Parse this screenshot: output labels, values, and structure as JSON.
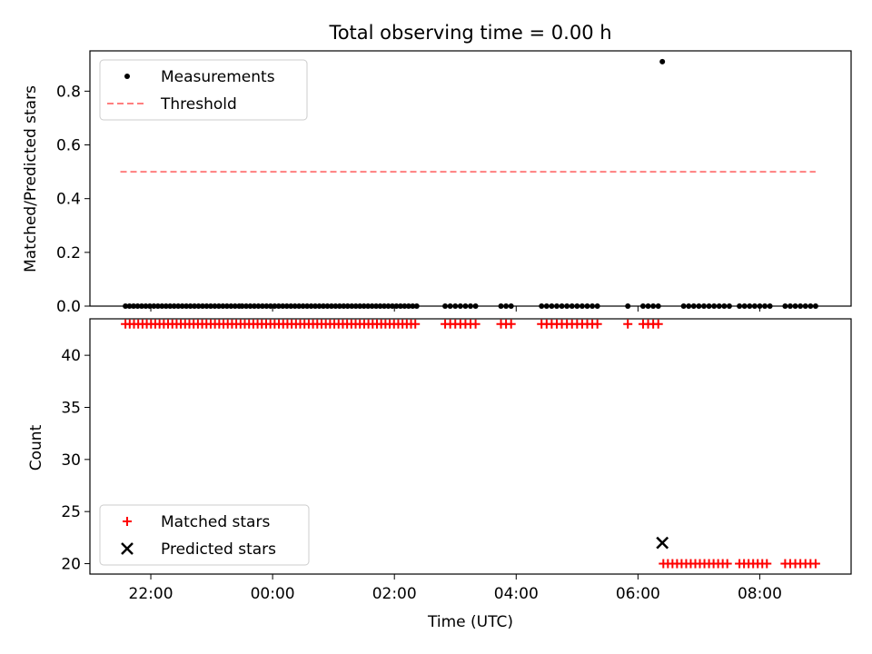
{
  "chart_data": [
    {
      "type": "scatter",
      "title": "Total observing time = 0.00 h",
      "xlabel": "",
      "ylabel": "Matched/Predicted stars",
      "xlim": [
        "21:00",
        "09:30"
      ],
      "ylim": [
        0,
        0.95
      ],
      "yticks": [
        0.0,
        0.2,
        0.4,
        0.6,
        0.8
      ],
      "yticklabels": [
        "0.0",
        "0.2",
        "0.4",
        "0.6",
        "0.8"
      ],
      "grid": false,
      "legend": "upper left",
      "legend_entries": [
        "Measurements",
        "Threshold"
      ],
      "series": [
        {
          "name": "Measurements",
          "marker": "dot",
          "color": "#000000",
          "ranges": [
            {
              "start": "21:35",
              "end": "23:30",
              "step_min": 4,
              "y": 0
            },
            {
              "start": "23:30",
              "end": "02:24",
              "step_min": 4,
              "y": 0
            },
            {
              "start": "02:50",
              "end": "03:20",
              "step_min": 5,
              "y": 0
            },
            {
              "start": "03:45",
              "end": "03:55",
              "step_min": 5,
              "y": 0
            },
            {
              "start": "04:25",
              "end": "05:20",
              "step_min": 5,
              "y": 0
            },
            {
              "start": "06:05",
              "end": "06:20",
              "step_min": 5,
              "y": 0
            },
            {
              "start": "06:45",
              "end": "07:30",
              "step_min": 5,
              "y": 0
            },
            {
              "start": "07:40",
              "end": "08:10",
              "step_min": 5,
              "y": 0
            },
            {
              "start": "08:25",
              "end": "08:55",
              "step_min": 5,
              "y": 0
            }
          ],
          "points": [
            {
              "x": "05:50",
              "y": 0
            },
            {
              "x": "06:24",
              "y": 0.91
            }
          ]
        },
        {
          "name": "Threshold",
          "style": "dashed",
          "color": "#ff7f7f",
          "x": [
            "21:30",
            "08:55"
          ],
          "y": [
            0.5,
            0.5
          ]
        }
      ]
    },
    {
      "type": "scatter",
      "title": "",
      "xlabel": "Time (UTC)",
      "ylabel": "Count",
      "xlim": [
        "21:00",
        "09:30"
      ],
      "ylim": [
        19,
        43.5
      ],
      "xticks": [
        "22:00",
        "00:00",
        "02:00",
        "04:00",
        "06:00",
        "08:00"
      ],
      "yticks": [
        20,
        25,
        30,
        35,
        40
      ],
      "grid": false,
      "legend": "lower left",
      "legend_entries": [
        "Matched stars",
        "Predicted stars"
      ],
      "series": [
        {
          "name": "Matched stars",
          "marker": "plus",
          "color": "#ff0000",
          "ranges": [
            {
              "start": "21:35",
              "end": "02:24",
              "step_min": 4.2,
              "y": 43
            },
            {
              "start": "02:50",
              "end": "03:20",
              "step_min": 5,
              "y": 43
            },
            {
              "start": "03:45",
              "end": "03:55",
              "step_min": 5,
              "y": 43
            },
            {
              "start": "04:25",
              "end": "05:20",
              "step_min": 5,
              "y": 43
            },
            {
              "start": "06:05",
              "end": "06:20",
              "step_min": 5,
              "y": 43
            },
            {
              "start": "06:25",
              "end": "07:30",
              "step_min": 4.5,
              "y": 20
            },
            {
              "start": "07:40",
              "end": "08:10",
              "step_min": 4.5,
              "y": 20
            },
            {
              "start": "08:25",
              "end": "08:55",
              "step_min": 5,
              "y": 20
            }
          ],
          "points": [
            {
              "x": "05:50",
              "y": 43
            }
          ]
        },
        {
          "name": "Predicted stars",
          "marker": "x",
          "color": "#000000",
          "points": [
            {
              "x": "06:24",
              "y": 22
            }
          ]
        }
      ]
    }
  ]
}
